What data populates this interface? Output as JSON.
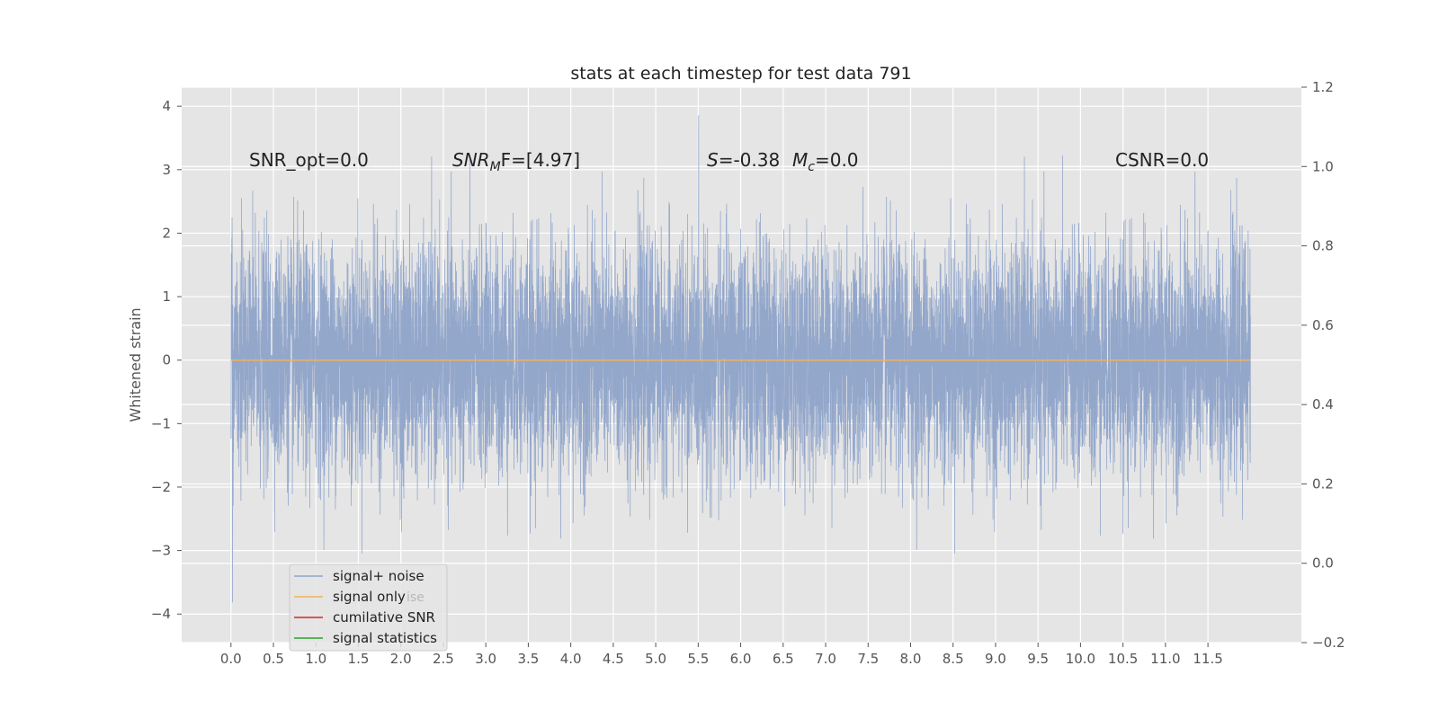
{
  "chart_data": {
    "type": "line",
    "title": "stats at each timestep for test data 791",
    "ylabel": "Whitened strain",
    "xlabel": "",
    "xlim": [
      -0.58,
      12.6
    ],
    "ylim": [
      -4.45,
      4.3
    ],
    "y2lim": [
      -0.2,
      1.2
    ],
    "x_ticks": [
      "0.0",
      "0.5",
      "1.0",
      "1.5",
      "2.0",
      "2.5",
      "3.0",
      "3.5",
      "4.0",
      "4.5",
      "5.0",
      "5.5",
      "6.0",
      "6.5",
      "7.0",
      "7.5",
      "8.0",
      "8.5",
      "9.0",
      "9.5",
      "10.0",
      "10.5",
      "11.0",
      "11.5"
    ],
    "y_ticks": [
      "4",
      "3",
      "2",
      "1",
      "0",
      "−1",
      "−2",
      "−3",
      "−4"
    ],
    "y2_ticks": [
      "1.2",
      "1.0",
      "0.8",
      "0.6",
      "0.4",
      "0.2",
      "0.0",
      "−0.2"
    ],
    "grid": true,
    "legend_position": "lower-left",
    "annotations": {
      "snr_opt": "SNR_opt=0.0",
      "snr_mf_sym": "SNR",
      "snr_mf_sub": "M",
      "snr_mf_rest": "F=[4.97]",
      "s_sym": "S",
      "s_value": "=-0.38",
      "mc_sym": "M",
      "mc_sub": "c",
      "mc_value": "=0.0",
      "csnr": "CSNR=0.0"
    },
    "series": [
      {
        "name": "signal+ noise",
        "color": "#8ea3c9",
        "x_range": [
          0.0,
          12.0
        ],
        "value_range": [
          -4.05,
          3.92
        ],
        "typical_range": [
          -2.0,
          2.0
        ],
        "description_note": "white noise"
      },
      {
        "name": "signal only",
        "color": "#f0b35a",
        "values_constant": 0.0
      },
      {
        "name": "cumilative SNR",
        "color": "#d62728",
        "values": []
      },
      {
        "name": "signal statistics",
        "color": "#2ca02c",
        "values": []
      }
    ],
    "legend_ghost": "ise"
  }
}
